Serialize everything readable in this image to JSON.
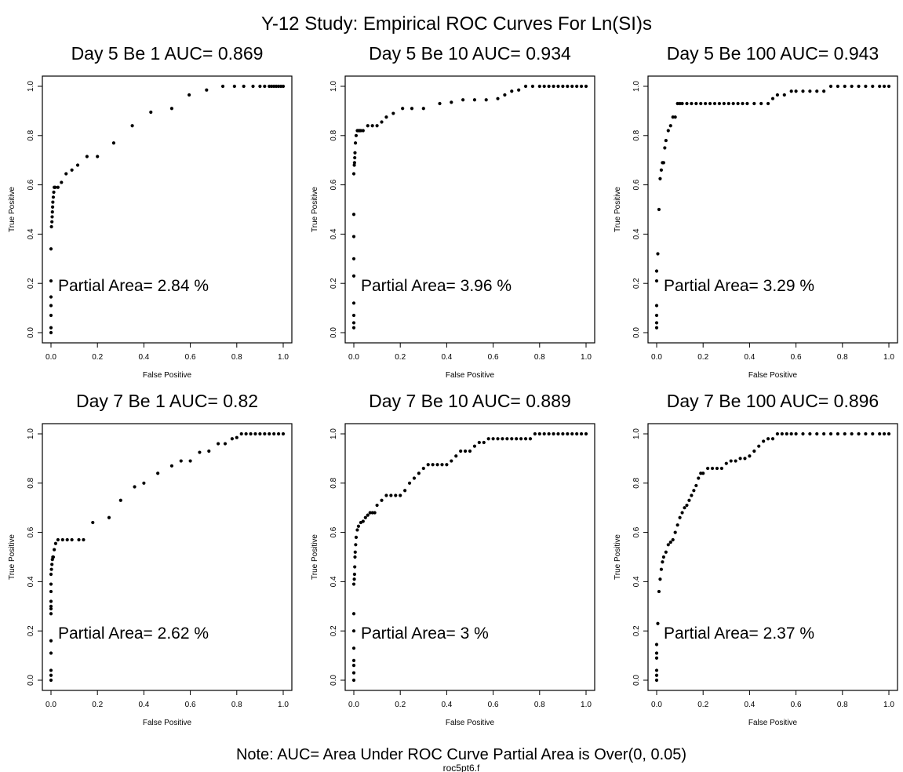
{
  "figure": {
    "title": "Y-12  Study: Empirical ROC Curves  For Ln(SI)s",
    "note": "Note: AUC= Area Under ROC Curve   Partial Area is Over(0, 0.05)",
    "source": "roc5pt6.f"
  },
  "chart_data": [
    {
      "type": "scatter",
      "title": "Day 5 Be 1  AUC=  0.869",
      "annotation": "Partial Area=  2.84 %",
      "xlabel": "False Positive",
      "ylabel": "True Positive",
      "xlim": [
        0,
        1
      ],
      "ylim": [
        0,
        1
      ],
      "xticks": [
        "0.0",
        "0.2",
        "0.4",
        "0.6",
        "0.8",
        "1.0"
      ],
      "yticks": [
        "0.0",
        "0.2",
        "0.4",
        "0.6",
        "0.8",
        "1.0"
      ],
      "x": [
        0,
        0,
        0,
        0,
        0,
        0,
        0,
        0.002,
        0.004,
        0.005,
        0.006,
        0.007,
        0.008,
        0.01,
        0.012,
        0.014,
        0.018,
        0.03,
        0.045,
        0.065,
        0.09,
        0.115,
        0.155,
        0.2,
        0.27,
        0.35,
        0.43,
        0.52,
        0.595,
        0.67,
        0.74,
        0.79,
        0.83,
        0.87,
        0.9,
        0.92,
        0.94,
        0.95,
        0.96,
        0.97,
        0.98,
        0.99,
        1.0
      ],
      "y": [
        0.0,
        0.02,
        0.07,
        0.11,
        0.145,
        0.21,
        0.34,
        0.43,
        0.45,
        0.47,
        0.49,
        0.51,
        0.53,
        0.55,
        0.57,
        0.59,
        0.59,
        0.59,
        0.61,
        0.645,
        0.66,
        0.68,
        0.715,
        0.715,
        0.77,
        0.84,
        0.895,
        0.91,
        0.965,
        0.985,
        1.0,
        1.0,
        1.0,
        1.0,
        1.0,
        1.0,
        1.0,
        1.0,
        1.0,
        1.0,
        1.0,
        1.0,
        1.0
      ]
    },
    {
      "type": "scatter",
      "title": "Day 5 Be 10  AUC=  0.934",
      "annotation": "Partial Area=  3.96 %",
      "xlabel": "False Positive",
      "ylabel": "True Positive",
      "xlim": [
        0,
        1
      ],
      "ylim": [
        0,
        1
      ],
      "xticks": [
        "0.0",
        "0.2",
        "0.4",
        "0.6",
        "0.8",
        "1.0"
      ],
      "yticks": [
        "0.0",
        "0.2",
        "0.4",
        "0.6",
        "0.8",
        "1.0"
      ],
      "x": [
        0,
        0,
        0,
        0,
        0,
        0,
        0,
        0,
        0,
        0.002,
        0.003,
        0.004,
        0.005,
        0.007,
        0.01,
        0.015,
        0.02,
        0.025,
        0.03,
        0.04,
        0.06,
        0.08,
        0.1,
        0.12,
        0.14,
        0.17,
        0.21,
        0.25,
        0.3,
        0.37,
        0.42,
        0.47,
        0.52,
        0.57,
        0.62,
        0.65,
        0.68,
        0.71,
        0.74,
        0.77,
        0.8,
        0.82,
        0.84,
        0.86,
        0.88,
        0.9,
        0.92,
        0.94,
        0.96,
        0.98,
        1.0
      ],
      "y": [
        0.02,
        0.04,
        0.07,
        0.12,
        0.23,
        0.3,
        0.39,
        0.48,
        0.645,
        0.68,
        0.69,
        0.71,
        0.73,
        0.77,
        0.8,
        0.82,
        0.82,
        0.82,
        0.82,
        0.82,
        0.84,
        0.84,
        0.84,
        0.855,
        0.875,
        0.89,
        0.91,
        0.91,
        0.91,
        0.93,
        0.935,
        0.945,
        0.945,
        0.945,
        0.95,
        0.965,
        0.98,
        0.985,
        1.0,
        1.0,
        1.0,
        1.0,
        1.0,
        1.0,
        1.0,
        1.0,
        1.0,
        1.0,
        1.0,
        1.0,
        1.0
      ]
    },
    {
      "type": "scatter",
      "title": "Day 5 Be 100  AUC=  0.943",
      "annotation": "Partial Area=  3.29 %",
      "xlabel": "False Positive",
      "ylabel": "True Positive",
      "xlim": [
        0,
        1
      ],
      "ylim": [
        0,
        1
      ],
      "xticks": [
        "0.0",
        "0.2",
        "0.4",
        "0.6",
        "0.8",
        "1.0"
      ],
      "yticks": [
        "0.0",
        "0.2",
        "0.4",
        "0.6",
        "0.8",
        "1.0"
      ],
      "x": [
        0,
        0,
        0,
        0,
        0,
        0,
        0.005,
        0.01,
        0.015,
        0.02,
        0.025,
        0.03,
        0.035,
        0.04,
        0.05,
        0.06,
        0.07,
        0.08,
        0.09,
        0.1,
        0.11,
        0.13,
        0.15,
        0.17,
        0.19,
        0.21,
        0.23,
        0.25,
        0.27,
        0.29,
        0.31,
        0.33,
        0.35,
        0.37,
        0.39,
        0.42,
        0.45,
        0.48,
        0.5,
        0.52,
        0.55,
        0.58,
        0.6,
        0.63,
        0.66,
        0.69,
        0.72,
        0.75,
        0.78,
        0.81,
        0.84,
        0.87,
        0.9,
        0.93,
        0.96,
        0.98,
        1.0
      ],
      "y": [
        0.02,
        0.04,
        0.07,
        0.11,
        0.21,
        0.25,
        0.32,
        0.5,
        0.625,
        0.66,
        0.69,
        0.69,
        0.75,
        0.78,
        0.82,
        0.84,
        0.875,
        0.875,
        0.93,
        0.93,
        0.93,
        0.93,
        0.93,
        0.93,
        0.93,
        0.93,
        0.93,
        0.93,
        0.93,
        0.93,
        0.93,
        0.93,
        0.93,
        0.93,
        0.93,
        0.93,
        0.93,
        0.93,
        0.95,
        0.965,
        0.965,
        0.98,
        0.98,
        0.98,
        0.98,
        0.98,
        0.98,
        1.0,
        1.0,
        1.0,
        1.0,
        1.0,
        1.0,
        1.0,
        1.0,
        1.0,
        1.0
      ]
    },
    {
      "type": "scatter",
      "title": "Day 7 Be 1  AUC=  0.82",
      "annotation": "Partial Area=  2.62 %",
      "xlabel": "False Positive",
      "ylabel": "True Positive",
      "xlim": [
        0,
        1
      ],
      "ylim": [
        0,
        1
      ],
      "xticks": [
        "0.0",
        "0.2",
        "0.4",
        "0.6",
        "0.8",
        "1.0"
      ],
      "yticks": [
        "0.0",
        "0.2",
        "0.4",
        "0.6",
        "0.8",
        "1.0"
      ],
      "x": [
        0,
        0,
        0,
        0,
        0,
        0,
        0,
        0,
        0,
        0,
        0,
        0,
        0.002,
        0.004,
        0.006,
        0.008,
        0.01,
        0.014,
        0.02,
        0.03,
        0.05,
        0.07,
        0.09,
        0.12,
        0.14,
        0.18,
        0.25,
        0.3,
        0.36,
        0.4,
        0.46,
        0.52,
        0.56,
        0.6,
        0.64,
        0.68,
        0.72,
        0.75,
        0.78,
        0.8,
        0.82,
        0.84,
        0.86,
        0.88,
        0.9,
        0.92,
        0.94,
        0.96,
        0.98,
        1.0
      ],
      "y": [
        0.0,
        0.02,
        0.04,
        0.11,
        0.16,
        0.27,
        0.29,
        0.3,
        0.32,
        0.36,
        0.39,
        0.43,
        0.45,
        0.47,
        0.49,
        0.5,
        0.5,
        0.53,
        0.555,
        0.57,
        0.57,
        0.57,
        0.57,
        0.57,
        0.57,
        0.64,
        0.66,
        0.73,
        0.785,
        0.8,
        0.84,
        0.87,
        0.89,
        0.89,
        0.925,
        0.93,
        0.96,
        0.96,
        0.98,
        0.985,
        1.0,
        1.0,
        1.0,
        1.0,
        1.0,
        1.0,
        1.0,
        1.0,
        1.0,
        1.0
      ]
    },
    {
      "type": "scatter",
      "title": "Day 7 Be 10  AUC=  0.889",
      "annotation": "Partial Area=  3 %",
      "xlabel": "False Positive",
      "ylabel": "True Positive",
      "xlim": [
        0,
        1
      ],
      "ylim": [
        0,
        1
      ],
      "xticks": [
        "0.0",
        "0.2",
        "0.4",
        "0.6",
        "0.8",
        "1.0"
      ],
      "yticks": [
        "0.0",
        "0.2",
        "0.4",
        "0.6",
        "0.8",
        "1.0"
      ],
      "x": [
        0,
        0,
        0,
        0,
        0,
        0,
        0,
        0,
        0.002,
        0.003,
        0.004,
        0.005,
        0.006,
        0.008,
        0.01,
        0.015,
        0.02,
        0.03,
        0.04,
        0.05,
        0.06,
        0.07,
        0.08,
        0.09,
        0.1,
        0.12,
        0.14,
        0.16,
        0.18,
        0.2,
        0.22,
        0.24,
        0.26,
        0.28,
        0.3,
        0.32,
        0.34,
        0.36,
        0.38,
        0.4,
        0.42,
        0.44,
        0.46,
        0.48,
        0.5,
        0.52,
        0.54,
        0.56,
        0.58,
        0.6,
        0.62,
        0.64,
        0.66,
        0.68,
        0.7,
        0.72,
        0.74,
        0.76,
        0.78,
        0.8,
        0.82,
        0.84,
        0.86,
        0.88,
        0.9,
        0.92,
        0.94,
        0.96,
        0.98,
        1.0
      ],
      "y": [
        0.0,
        0.03,
        0.06,
        0.08,
        0.13,
        0.2,
        0.27,
        0.39,
        0.41,
        0.43,
        0.46,
        0.5,
        0.52,
        0.55,
        0.58,
        0.61,
        0.625,
        0.64,
        0.645,
        0.66,
        0.67,
        0.68,
        0.68,
        0.68,
        0.71,
        0.73,
        0.75,
        0.75,
        0.75,
        0.75,
        0.77,
        0.8,
        0.82,
        0.84,
        0.86,
        0.875,
        0.875,
        0.875,
        0.875,
        0.875,
        0.89,
        0.91,
        0.93,
        0.93,
        0.93,
        0.95,
        0.965,
        0.965,
        0.98,
        0.98,
        0.98,
        0.98,
        0.98,
        0.98,
        0.98,
        0.98,
        0.98,
        0.98,
        1.0,
        1.0,
        1.0,
        1.0,
        1.0,
        1.0,
        1.0,
        1.0,
        1.0,
        1.0,
        1.0,
        1.0
      ]
    },
    {
      "type": "scatter",
      "title": "Day 7 Be 100  AUC=  0.896",
      "annotation": "Partial Area=  2.37 %",
      "xlabel": "False Positive",
      "ylabel": "True Positive",
      "xlim": [
        0,
        1
      ],
      "ylim": [
        0,
        1
      ],
      "xticks": [
        "0.0",
        "0.2",
        "0.4",
        "0.6",
        "0.8",
        "1.0"
      ],
      "yticks": [
        "0.0",
        "0.2",
        "0.4",
        "0.6",
        "0.8",
        "1.0"
      ],
      "x": [
        0,
        0,
        0,
        0,
        0,
        0,
        0.005,
        0.01,
        0.015,
        0.02,
        0.025,
        0.03,
        0.04,
        0.05,
        0.06,
        0.07,
        0.08,
        0.09,
        0.1,
        0.11,
        0.12,
        0.13,
        0.14,
        0.15,
        0.16,
        0.17,
        0.18,
        0.19,
        0.2,
        0.22,
        0.24,
        0.26,
        0.28,
        0.3,
        0.32,
        0.34,
        0.36,
        0.38,
        0.4,
        0.42,
        0.44,
        0.46,
        0.48,
        0.5,
        0.52,
        0.54,
        0.56,
        0.58,
        0.6,
        0.63,
        0.66,
        0.69,
        0.72,
        0.75,
        0.78,
        0.81,
        0.84,
        0.87,
        0.9,
        0.93,
        0.96,
        0.98,
        1.0
      ],
      "y": [
        0.0,
        0.02,
        0.04,
        0.09,
        0.11,
        0.145,
        0.23,
        0.36,
        0.41,
        0.45,
        0.48,
        0.5,
        0.52,
        0.55,
        0.56,
        0.57,
        0.6,
        0.63,
        0.66,
        0.68,
        0.7,
        0.71,
        0.73,
        0.75,
        0.77,
        0.79,
        0.82,
        0.84,
        0.84,
        0.86,
        0.86,
        0.86,
        0.86,
        0.88,
        0.89,
        0.89,
        0.9,
        0.9,
        0.91,
        0.93,
        0.95,
        0.97,
        0.98,
        0.98,
        1.0,
        1.0,
        1.0,
        1.0,
        1.0,
        1.0,
        1.0,
        1.0,
        1.0,
        1.0,
        1.0,
        1.0,
        1.0,
        1.0,
        1.0,
        1.0,
        1.0,
        1.0,
        1.0
      ]
    }
  ]
}
